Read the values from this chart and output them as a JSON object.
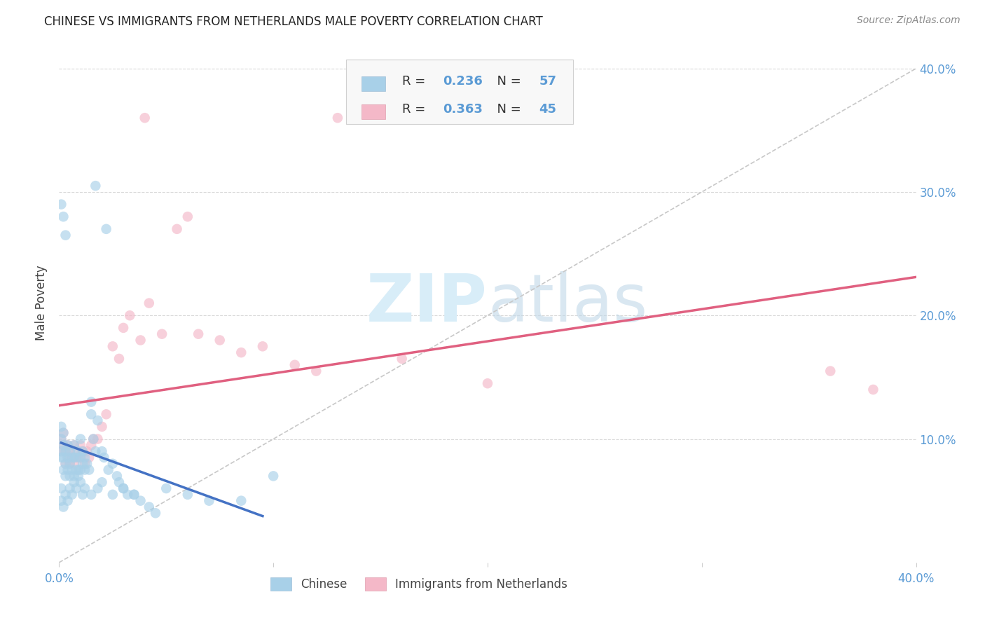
{
  "title": "CHINESE VS IMMIGRANTS FROM NETHERLANDS MALE POVERTY CORRELATION CHART",
  "source": "Source: ZipAtlas.com",
  "ylabel": "Male Poverty",
  "xlim": [
    0.0,
    0.4
  ],
  "ylim": [
    0.0,
    0.42
  ],
  "x_tick_vals": [
    0.0,
    0.1,
    0.2,
    0.3,
    0.4
  ],
  "x_tick_labels": [
    "0.0%",
    "",
    "",
    "",
    "40.0%"
  ],
  "y_tick_vals": [
    0.1,
    0.2,
    0.3,
    0.4
  ],
  "y_tick_labels_right": [
    "10.0%",
    "20.0%",
    "30.0%",
    "40.0%"
  ],
  "series1_label": "Chinese",
  "series1_R": "0.236",
  "series1_N": "57",
  "series1_color": "#a8d0e8",
  "series2_label": "Immigrants from Netherlands",
  "series2_R": "0.363",
  "series2_N": "45",
  "series2_color": "#f4b8c8",
  "blue_line_color": "#4472c4",
  "pink_line_color": "#e06080",
  "diagonal_color": "#c8c8c8",
  "background_color": "#ffffff",
  "grid_color": "#d8d8d8",
  "label_color": "#5b9bd5",
  "text_color": "#404040",
  "watermark_color": "#d8edf8",
  "chinese_x": [
    0.001,
    0.001,
    0.001,
    0.001,
    0.002,
    0.002,
    0.002,
    0.002,
    0.003,
    0.003,
    0.003,
    0.004,
    0.004,
    0.004,
    0.005,
    0.005,
    0.005,
    0.006,
    0.006,
    0.007,
    0.007,
    0.007,
    0.008,
    0.008,
    0.009,
    0.009,
    0.01,
    0.01,
    0.01,
    0.011,
    0.011,
    0.012,
    0.012,
    0.013,
    0.014,
    0.015,
    0.015,
    0.016,
    0.017,
    0.018,
    0.02,
    0.021,
    0.023,
    0.025,
    0.027,
    0.028,
    0.03,
    0.032,
    0.035,
    0.038,
    0.042,
    0.045,
    0.05,
    0.06,
    0.07,
    0.085,
    0.1
  ],
  "chinese_y": [
    0.1,
    0.11,
    0.09,
    0.085,
    0.105,
    0.095,
    0.085,
    0.075,
    0.09,
    0.08,
    0.07,
    0.095,
    0.085,
    0.075,
    0.09,
    0.08,
    0.07,
    0.085,
    0.075,
    0.095,
    0.085,
    0.07,
    0.085,
    0.075,
    0.09,
    0.075,
    0.1,
    0.085,
    0.075,
    0.09,
    0.08,
    0.085,
    0.075,
    0.08,
    0.075,
    0.12,
    0.13,
    0.1,
    0.09,
    0.115,
    0.09,
    0.085,
    0.075,
    0.08,
    0.07,
    0.065,
    0.06,
    0.055,
    0.055,
    0.05,
    0.045,
    0.04,
    0.06,
    0.055,
    0.05,
    0.05,
    0.07
  ],
  "netherlands_x": [
    0.001,
    0.001,
    0.002,
    0.002,
    0.003,
    0.003,
    0.004,
    0.004,
    0.005,
    0.005,
    0.006,
    0.007,
    0.007,
    0.008,
    0.009,
    0.01,
    0.01,
    0.011,
    0.012,
    0.013,
    0.014,
    0.015,
    0.016,
    0.018,
    0.02,
    0.022,
    0.025,
    0.028,
    0.03,
    0.033,
    0.038,
    0.042,
    0.048,
    0.055,
    0.065,
    0.075,
    0.085,
    0.095,
    0.11,
    0.12,
    0.13,
    0.16,
    0.2,
    0.36,
    0.38
  ],
  "netherlands_y": [
    0.1,
    0.09,
    0.105,
    0.095,
    0.09,
    0.08,
    0.095,
    0.085,
    0.09,
    0.08,
    0.085,
    0.095,
    0.08,
    0.09,
    0.085,
    0.095,
    0.085,
    0.09,
    0.08,
    0.09,
    0.085,
    0.095,
    0.1,
    0.1,
    0.11,
    0.12,
    0.175,
    0.165,
    0.19,
    0.2,
    0.18,
    0.21,
    0.185,
    0.27,
    0.185,
    0.18,
    0.17,
    0.175,
    0.16,
    0.155,
    0.36,
    0.165,
    0.145,
    0.155,
    0.14
  ]
}
